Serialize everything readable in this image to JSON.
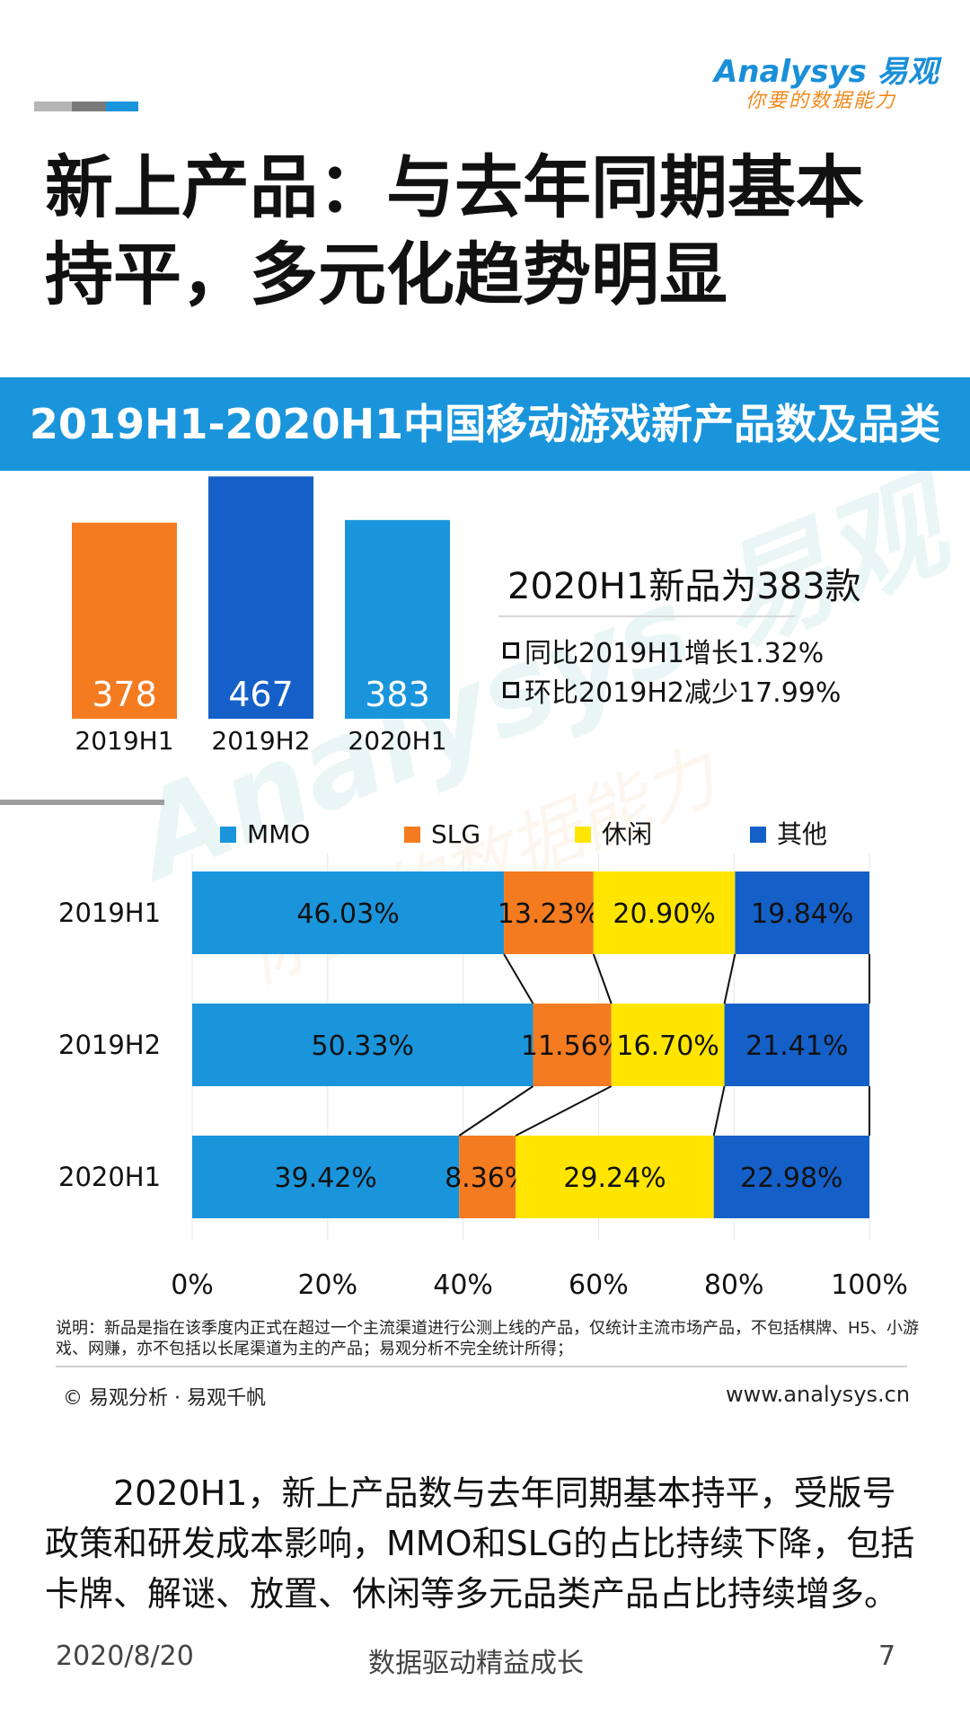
{
  "logo": {
    "main": "Analysys 易观",
    "sub": "你要的数据能力"
  },
  "title": "新上产品：与去年同期基本持平，多元化趋势明显",
  "banner": "2019H1-2020H1中国移动游戏新产品数及品类",
  "summary": {
    "headline": "2020H1新品为383款",
    "stats": [
      "同比2019H1增长1.32%",
      "环比2019H2减少17.99%"
    ]
  },
  "watermark": {
    "main": "Analysys 易观",
    "sub": "你要的数据能力"
  },
  "colors": {
    "banner": "#1a95dc",
    "orange": "#f47b20",
    "dark_blue": "#1560c8",
    "blue": "#1a95dc",
    "yellow": "#ffe500"
  },
  "chart_data": [
    {
      "type": "bar",
      "categories": [
        "2019H1",
        "2019H2",
        "2020H1"
      ],
      "values": [
        378,
        467,
        383
      ],
      "colors": [
        "#f47b20",
        "#1560c8",
        "#1a95dc"
      ]
    },
    {
      "type": "bar",
      "stacked": "horizontal-100%",
      "categories": [
        "2019H1",
        "2019H2",
        "2020H1"
      ],
      "series": [
        {
          "name": "MMO",
          "values": [
            46.03,
            50.33,
            39.42
          ],
          "labels": [
            "46.03%",
            "50.33%",
            "39.42%"
          ],
          "color": "#1a95dc"
        },
        {
          "name": "SLG",
          "values": [
            13.23,
            11.56,
            8.36
          ],
          "labels": [
            "13.23%",
            "11.56%",
            "8.36%"
          ],
          "color": "#f47b20"
        },
        {
          "name": "休闲",
          "values": [
            20.9,
            16.7,
            29.24
          ],
          "labels": [
            "20.90%",
            "16.70%",
            "29.24%"
          ],
          "color": "#ffe500"
        },
        {
          "name": "其他",
          "values": [
            19.84,
            21.41,
            22.98
          ],
          "labels": [
            "19.84%",
            "21.41%",
            "22.98%"
          ],
          "color": "#1560c8"
        }
      ],
      "xlim": [
        0,
        100
      ],
      "xticks": [
        "0%",
        "20%",
        "40%",
        "60%",
        "80%",
        "100%"
      ],
      "legend": "top"
    }
  ],
  "note": "说明：新品是指在该季度内正式在超过一个主流渠道进行公测上线的产品，仅统计主流市场产品，不包括棋牌、H5、小游戏、网赚，亦不包括以长尾渠道为主的产品；易观分析不完全统计所得；",
  "copyright": "© 易观分析 · 易观千帆",
  "website": "www.analysys.cn",
  "body_text": "2020H1，新上产品数与去年同期基本持平，受版号政策和研发成本影响，MMO和SLG的占比持续下降，包括卡牌、解谜、放置、休闲等多元品类产品占比持续增多。",
  "footer": {
    "date": "2020/8/20",
    "slogan": "数据驱动精益成长",
    "page": "7"
  }
}
